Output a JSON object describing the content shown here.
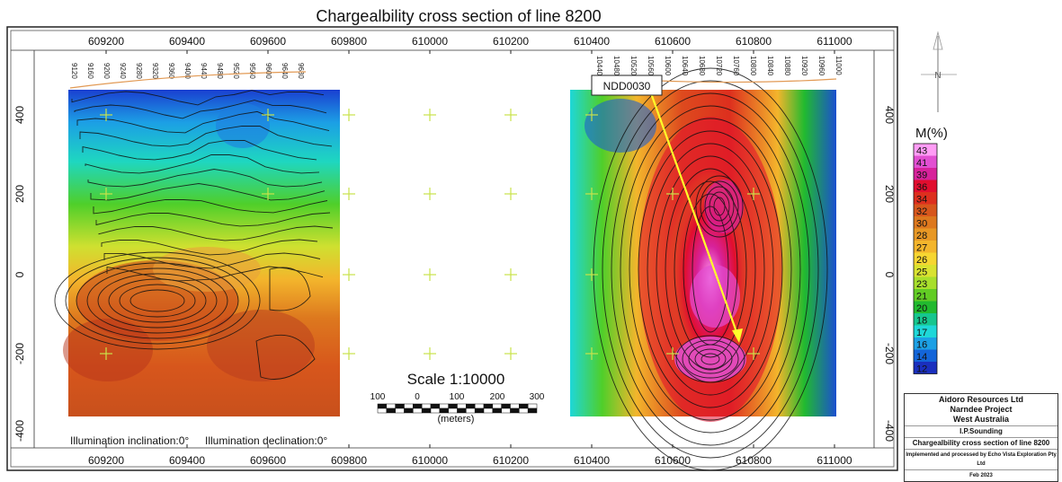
{
  "title": "Chargealbility cross section of line 8200",
  "x_ticks": [
    "609200",
    "609400",
    "609600",
    "609800",
    "610000",
    "610200",
    "610400",
    "610600",
    "610800",
    "611000"
  ],
  "y_ticks_left": [
    "400",
    "200",
    "0",
    "-200",
    "-400"
  ],
  "y_ticks_right": [
    "400",
    "200",
    "0",
    "-200",
    "-400"
  ],
  "stations_left": [
    "9120",
    "9160",
    "9200",
    "9240",
    "9280",
    "9320",
    "9360",
    "9400",
    "9440",
    "9480",
    "9520",
    "9560",
    "9600",
    "9640",
    "9680"
  ],
  "stations_right": [
    "10440",
    "10480",
    "10520",
    "10560",
    "10600",
    "10640",
    "10680",
    "10720",
    "10760",
    "10800",
    "10840",
    "10880",
    "10920",
    "10960",
    "11000"
  ],
  "drillhole_label": "NDD0030",
  "scale": {
    "label": "Scale 1:10000",
    "ticks": [
      "100",
      "0",
      "100",
      "200",
      "300"
    ],
    "unit": "(meters)"
  },
  "illumination": {
    "inclination": "Illumination inclination:0°",
    "declination": "Illumination declination:0°"
  },
  "legend": {
    "title": "M(%)",
    "values": [
      "43",
      "41",
      "39",
      "36",
      "34",
      "32",
      "30",
      "28",
      "27",
      "26",
      "25",
      "23",
      "21",
      "20",
      "18",
      "17",
      "16",
      "14",
      "12"
    ],
    "colors": [
      "#ff9cf5",
      "#e24fd2",
      "#d7229b",
      "#e10e2e",
      "#dd2f1e",
      "#d7561c",
      "#dd781e",
      "#e89825",
      "#f3b52c",
      "#f6d631",
      "#d9e230",
      "#a8df2c",
      "#62cc24",
      "#21ba2f",
      "#16c68e",
      "#1ed7d8",
      "#1ca0e5",
      "#1365d9",
      "#1a2fbe"
    ]
  },
  "title_block": {
    "company": "Aidoro Resources Ltd",
    "project": "Narndee Project",
    "region": "West Australia",
    "method": "I.P.Sounding",
    "section": "Chargealbility cross section of line 8200",
    "credit": "Implemented and processed by Echo Vista Exploration Pty Ltd",
    "date": "Feb 2023"
  },
  "north_arrow": "N"
}
